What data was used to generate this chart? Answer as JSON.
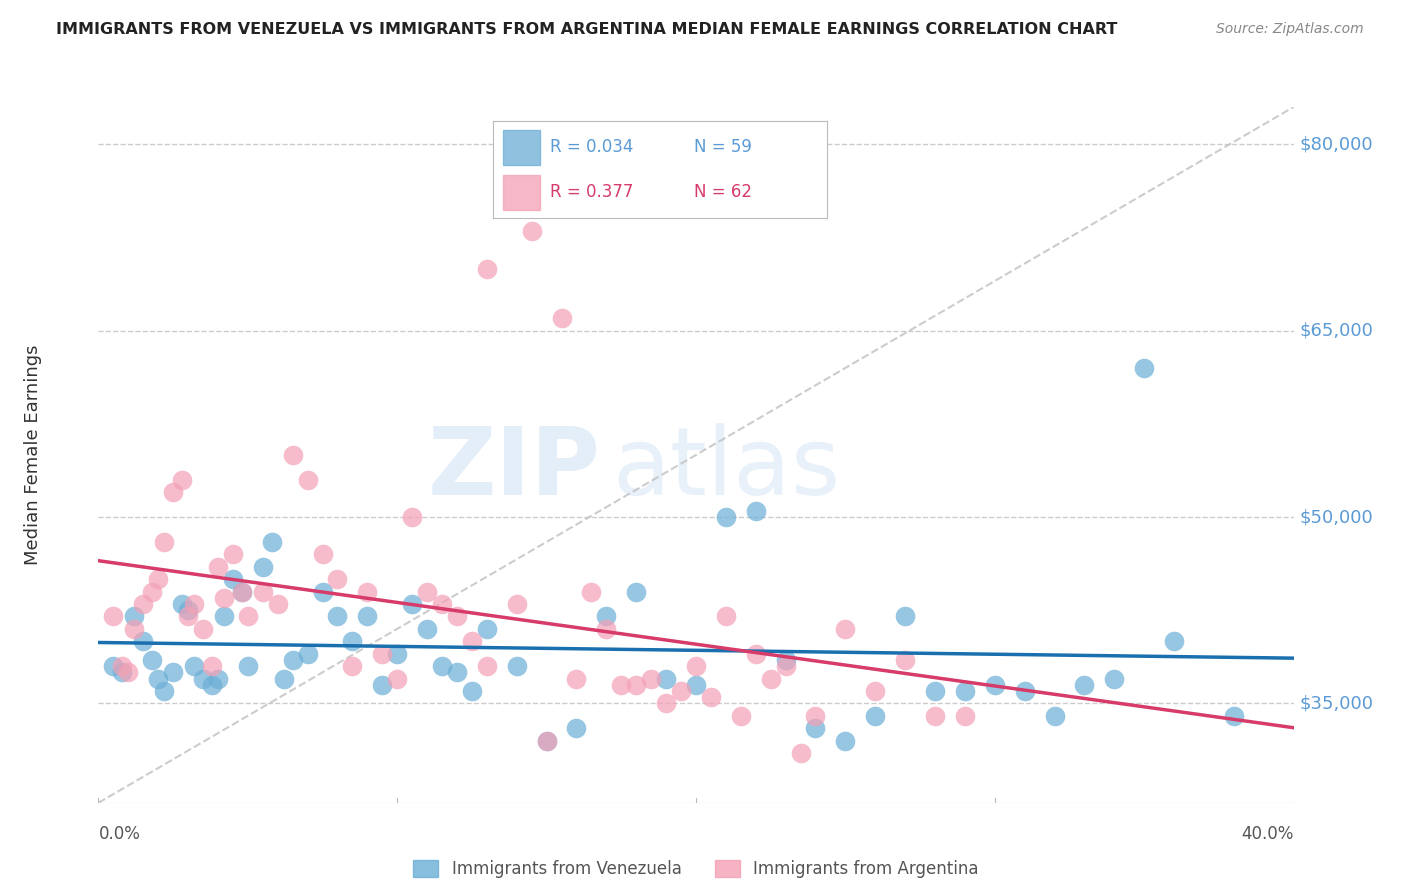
{
  "title": "IMMIGRANTS FROM VENEZUELA VS IMMIGRANTS FROM ARGENTINA MEDIAN FEMALE EARNINGS CORRELATION CHART",
  "source": "Source: ZipAtlas.com",
  "ylabel": "Median Female Earnings",
  "yticks": [
    35000,
    50000,
    65000,
    80000
  ],
  "ytick_labels": [
    "$35,000",
    "$50,000",
    "$65,000",
    "$80,000"
  ],
  "xlim": [
    0.0,
    0.4
  ],
  "ylim": [
    27000,
    83000
  ],
  "legend1_label": "Immigrants from Venezuela",
  "legend2_label": "Immigrants from Argentina",
  "R_venezuela": 0.034,
  "N_venezuela": 59,
  "R_argentina": 0.377,
  "N_argentina": 62,
  "color_venezuela": "#6baed6",
  "color_argentina": "#f4a0b5",
  "color_venezuela_line": "#1a6faf",
  "color_argentina_line": "#d63b6a",
  "color_diagonal": "#c0c0c0",
  "watermark_zip": "ZIP",
  "watermark_atlas": "atlas",
  "venezuela_x": [
    0.005,
    0.008,
    0.012,
    0.015,
    0.018,
    0.02,
    0.022,
    0.025,
    0.028,
    0.03,
    0.032,
    0.035,
    0.038,
    0.04,
    0.042,
    0.045,
    0.048,
    0.05,
    0.055,
    0.058,
    0.062,
    0.065,
    0.07,
    0.075,
    0.08,
    0.085,
    0.09,
    0.095,
    0.1,
    0.105,
    0.11,
    0.115,
    0.12,
    0.125,
    0.13,
    0.14,
    0.15,
    0.16,
    0.17,
    0.18,
    0.19,
    0.2,
    0.21,
    0.22,
    0.23,
    0.24,
    0.25,
    0.26,
    0.27,
    0.28,
    0.29,
    0.3,
    0.32,
    0.34,
    0.36,
    0.38,
    0.35,
    0.31,
    0.33
  ],
  "venezuela_y": [
    38000,
    37500,
    42000,
    40000,
    38500,
    37000,
    36000,
    37500,
    43000,
    42500,
    38000,
    37000,
    36500,
    37000,
    42000,
    45000,
    44000,
    38000,
    46000,
    48000,
    37000,
    38500,
    39000,
    44000,
    42000,
    40000,
    42000,
    36500,
    39000,
    43000,
    41000,
    38000,
    37500,
    36000,
    41000,
    38000,
    32000,
    33000,
    42000,
    44000,
    37000,
    36500,
    50000,
    50500,
    38500,
    33000,
    32000,
    34000,
    42000,
    36000,
    36000,
    36500,
    34000,
    37000,
    40000,
    34000,
    62000,
    36000,
    36500
  ],
  "argentina_x": [
    0.005,
    0.008,
    0.01,
    0.012,
    0.015,
    0.018,
    0.02,
    0.022,
    0.025,
    0.028,
    0.03,
    0.032,
    0.035,
    0.038,
    0.04,
    0.042,
    0.045,
    0.048,
    0.05,
    0.055,
    0.06,
    0.065,
    0.07,
    0.075,
    0.08,
    0.085,
    0.09,
    0.095,
    0.1,
    0.105,
    0.11,
    0.115,
    0.12,
    0.125,
    0.13,
    0.14,
    0.15,
    0.16,
    0.17,
    0.18,
    0.19,
    0.2,
    0.21,
    0.22,
    0.23,
    0.24,
    0.25,
    0.26,
    0.27,
    0.28,
    0.29,
    0.13,
    0.145,
    0.155,
    0.165,
    0.175,
    0.185,
    0.195,
    0.205,
    0.215,
    0.225,
    0.235
  ],
  "argentina_y": [
    42000,
    38000,
    37500,
    41000,
    43000,
    44000,
    45000,
    48000,
    52000,
    53000,
    42000,
    43000,
    41000,
    38000,
    46000,
    43500,
    47000,
    44000,
    42000,
    44000,
    43000,
    55000,
    53000,
    47000,
    45000,
    38000,
    44000,
    39000,
    37000,
    50000,
    44000,
    43000,
    42000,
    40000,
    38000,
    43000,
    32000,
    37000,
    41000,
    36500,
    35000,
    38000,
    42000,
    39000,
    38000,
    34000,
    41000,
    36000,
    38500,
    34000,
    34000,
    70000,
    73000,
    66000,
    44000,
    36500,
    37000,
    36000,
    35500,
    34000,
    37000,
    31000
  ]
}
